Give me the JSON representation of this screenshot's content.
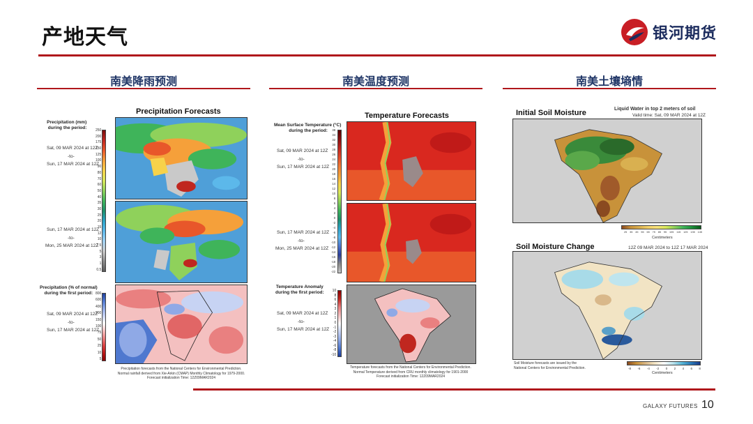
{
  "page": {
    "title": "产地天气",
    "number": "10",
    "footer_brand": "GALAXY FUTURES"
  },
  "logo": {
    "text": "银河期货"
  },
  "sections": [
    {
      "title": "南美降雨预测"
    },
    {
      "title": "南美温度预测"
    },
    {
      "title": "南美土壤墒情"
    }
  ],
  "precip": {
    "title": "Precipitation Forecasts",
    "legend1": "Precipitation (mm)\n during the period:",
    "period1": [
      "Sat, 09 MAR 2024 at 12Z",
      "-to-",
      "Sun, 17 MAR 2024 at 12Z"
    ],
    "period2": [
      "Sun, 17 MAR 2024 at 12Z",
      "-to-",
      "Mon, 25 MAR 2024 at 12Z"
    ],
    "legend2": "Precipitation (% of normal)\nduring the first period:",
    "period3": [
      "Sat, 09 MAR 2024 at 12Z",
      "-to-",
      "Sun, 17 MAR 2024 at 12Z"
    ],
    "ticks1": [
      "250",
      "200",
      "175",
      "150",
      "125",
      "100",
      "90",
      "80",
      "70",
      "60",
      "50",
      "40",
      "35",
      "30",
      "25",
      "20",
      "15",
      "12",
      "10",
      "7.5",
      "5",
      "3",
      "1",
      "0.5"
    ],
    "ticks2": [
      "800",
      "600",
      "400",
      "200",
      "150",
      "100",
      "75",
      "50",
      "25",
      "10",
      "5"
    ],
    "footnote": "Precipitation forecasts from the National Centers for Environmental Prediction.\nNormal rainfall derived from Xie-Arkin (CMAP) Monthly Climatology for 1979-2000.\nForecast initialization Time: 12Z09MAR2024"
  },
  "temp": {
    "title": "Temperature Forecasts",
    "legend1": "Mean Surface Temperature (°C)\n during the period:",
    "period1": [
      "Sat, 09 MAR 2024 at 12Z",
      "-to-",
      "Sun, 17 MAR 2024 at 12Z"
    ],
    "period2": [
      "Sun, 17 MAR 2024 at 12Z",
      "-to-",
      "Mon, 25 MAR 2024 at 12Z"
    ],
    "legend2": "Temperature Anomaly\nduring the first period:",
    "period3": [
      "Sat, 09 MAR 2024 at 12Z",
      "-to-",
      "Sun, 17 MAR 2024 at 12Z"
    ],
    "ticks1": [
      "38",
      "34",
      "32",
      "30",
      "28",
      "26",
      "24",
      "22",
      "20",
      "18",
      "16",
      "14",
      "12",
      "10",
      "8",
      "6",
      "4",
      "2",
      "0",
      "-2",
      "-4",
      "-6",
      "-8",
      "-10",
      "-12",
      "-14",
      "-16",
      "-18",
      "-20",
      "-22"
    ],
    "ticks2": [
      "10",
      "8",
      "6",
      "4",
      "3",
      "2",
      "1",
      "0",
      "-1",
      "-2",
      "-3",
      "-4",
      "-6",
      "-8",
      "-10"
    ],
    "footnote": "Temperature forecasts from the National Centers for Environmental Prediction.\nNormal Temperature derived from CRU monthly climatology for 1901-2000\nForecast initialization Time: 12Z09MAR2024"
  },
  "soil": {
    "title1": "Initial Soil Moisture",
    "subtitle1": "Liquid Water in top 2 meters of soil",
    "valid1": "Valid time: Sat, 09 MAR 2024 at 12Z",
    "ticks1": [
      "25",
      "35",
      "45",
      "55",
      "65",
      "75",
      "85",
      "95",
      "105",
      "115",
      "125",
      "135",
      "145"
    ],
    "unit1": "Centimeters",
    "title2": "Soil Moisture Change",
    "valid2": "12Z 09 MAR 2024 to 12Z 17 MAR 2024",
    "ticks2": [
      "-8",
      "-6",
      "-4",
      "-2",
      "0",
      "2",
      "4",
      "6",
      "8"
    ],
    "unit2": "Centimeters",
    "footnote": "Soil Moisture forecasts are issued by the\nNational Centers for Environmental Prediction."
  },
  "colors": {
    "accent_red": "#b0171b",
    "heading_blue": "#1f3566"
  }
}
